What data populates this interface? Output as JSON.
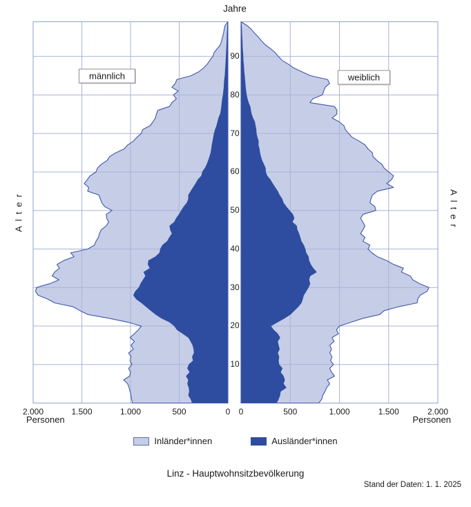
{
  "axis": {
    "age_unit_label": "Jahre",
    "age_axis_label": "Alter",
    "x_axis_label": "Personen",
    "x_ticks_left": [
      "2.000",
      "1.500",
      "1.000",
      "500",
      "0"
    ],
    "x_ticks_right": [
      "0",
      "500",
      "1.000",
      "1.500",
      "2.000"
    ],
    "age_ticks": [
      "10",
      "20",
      "30",
      "40",
      "50",
      "60",
      "70",
      "80",
      "90"
    ]
  },
  "panels": {
    "male_label": "männlich",
    "female_label": "weiblich"
  },
  "legend": [
    {
      "label": "Inländer*innen",
      "color": "#c6cde7"
    },
    {
      "label": "Ausländer*innen",
      "color": "#2e4da0"
    }
  ],
  "footer": {
    "title": "Linz - Hauptwohnsitzbevölkerung",
    "stand": "Stand der Daten: 1. 1. 2025"
  },
  "colors": {
    "light_fill": "#c6cde7",
    "dark_fill": "#2e4da0",
    "outline": "#3f58a8",
    "grid": "#a9b4d9",
    "panel_border": "#8ea1cd",
    "text": "#1a1a1a"
  },
  "chart_data": {
    "type": "area",
    "subtype": "population-pyramid",
    "title": "Linz - Hauptwohnsitzbevölkerung",
    "as_of": "1. 1. 2025",
    "xlabel": "Personen",
    "ylabel": "Alter (Jahre)",
    "x_range_per_side": [
      0,
      2000
    ],
    "x_tick_step": 500,
    "age_range": [
      0,
      99
    ],
    "age_tick_step": 10,
    "grid": true,
    "legend_position": "bottom",
    "stacking": "dark Ausländer*innen band from axis outward, light Inländer*innen band stacked outside it; outer edge = total",
    "ages": [
      0,
      1,
      2,
      3,
      4,
      5,
      6,
      7,
      8,
      9,
      10,
      11,
      12,
      13,
      14,
      15,
      16,
      17,
      18,
      19,
      20,
      21,
      22,
      23,
      24,
      25,
      26,
      27,
      28,
      29,
      30,
      31,
      32,
      33,
      34,
      35,
      36,
      37,
      38,
      39,
      40,
      41,
      42,
      43,
      44,
      45,
      46,
      47,
      48,
      49,
      50,
      51,
      52,
      53,
      54,
      55,
      56,
      57,
      58,
      59,
      60,
      61,
      62,
      63,
      64,
      65,
      66,
      67,
      68,
      69,
      70,
      71,
      72,
      73,
      74,
      75,
      76,
      77,
      78,
      79,
      80,
      81,
      82,
      83,
      84,
      85,
      86,
      87,
      88,
      89,
      90,
      91,
      92,
      93,
      94,
      95,
      96,
      97,
      98
    ],
    "series": [
      {
        "name": "männlich gesamt (Inländer*innen + Ausländer*innen)",
        "side": "male",
        "role": "total",
        "values": [
          980,
          990,
          995,
          1005,
          1015,
          1030,
          1070,
          1010,
          1000,
          1020,
          985,
          1005,
          995,
          1020,
          970,
          995,
          960,
          1005,
          960,
          920,
          890,
          1030,
          1220,
          1440,
          1520,
          1590,
          1780,
          1850,
          1950,
          1975,
          1965,
          1830,
          1735,
          1805,
          1780,
          1730,
          1755,
          1685,
          1580,
          1615,
          1440,
          1370,
          1355,
          1330,
          1320,
          1300,
          1250,
          1225,
          1245,
          1250,
          1190,
          1265,
          1295,
          1310,
          1325,
          1440,
          1430,
          1475,
          1445,
          1415,
          1355,
          1340,
          1300,
          1240,
          1215,
          1150,
          1065,
          1030,
          970,
          935,
          890,
          875,
          800,
          770,
          745,
          735,
          720,
          600,
          575,
          530,
          560,
          510,
          575,
          540,
          525,
          380,
          300,
          250,
          212,
          185,
          155,
          141,
          110,
          78,
          65,
          55,
          45,
          38,
          30
        ]
      },
      {
        "name": "männlich Ausländer*innen",
        "side": "male",
        "role": "foreign",
        "values": [
          365,
          380,
          404,
          395,
          400,
          414,
          404,
          428,
          390,
          414,
          400,
          356,
          365,
          346,
          350,
          360,
          380,
          404,
          462,
          520,
          549,
          597,
          680,
          740,
          790,
          838,
          886,
          940,
          969,
          950,
          912,
          895,
          870,
          845,
          863,
          800,
          820,
          814,
          742,
          700,
          693,
          670,
          622,
          600,
          573,
          590,
          597,
          549,
          530,
          500,
          477,
          452,
          420,
          404,
          404,
          380,
          356,
          330,
          308,
          270,
          262,
          235,
          215,
          200,
          187,
          175,
          168,
          163,
          155,
          148,
          141,
          130,
          115,
          105,
          95,
          78,
          70,
          65,
          60,
          57,
          48,
          45,
          40,
          38,
          35,
          30,
          28,
          25,
          22,
          20,
          18,
          16,
          14,
          12,
          10,
          9,
          8,
          6,
          5
        ]
      },
      {
        "name": "weiblich gesamt (Inländer*innen + Ausländer*innen)",
        "side": "female",
        "role": "total",
        "values": [
          790,
          820,
          830,
          853,
          870,
          901,
          877,
          950,
          920,
          901,
          940,
          910,
          925,
          901,
          920,
          901,
          945,
          925,
          990,
          970,
          1000,
          1120,
          1240,
          1410,
          1455,
          1600,
          1790,
          1795,
          1820,
          1890,
          1910,
          1815,
          1745,
          1720,
          1630,
          1650,
          1550,
          1480,
          1385,
          1330,
          1290,
          1310,
          1240,
          1260,
          1215,
          1240,
          1260,
          1238,
          1215,
          1240,
          1370,
          1360,
          1310,
          1320,
          1335,
          1385,
          1550,
          1480,
          1530,
          1550,
          1500,
          1455,
          1430,
          1380,
          1340,
          1335,
          1290,
          1262,
          1200,
          1130,
          1093,
          1060,
          1046,
          1000,
          925,
          973,
          975,
          950,
          700,
          730,
          827,
          840,
          855,
          900,
          880,
          707,
          620,
          537,
          480,
          417,
          380,
          346,
          300,
          248,
          210,
          177,
          140,
          106,
          64
        ]
      },
      {
        "name": "weiblich Ausländer*innen",
        "side": "female",
        "role": "foreign",
        "values": [
          360,
          380,
          395,
          400,
          458,
          430,
          443,
          430,
          400,
          419,
          385,
          380,
          385,
          371,
          390,
          380,
          371,
          395,
          371,
          330,
          300,
          370,
          440,
          500,
          540,
          580,
          612,
          625,
          636,
          660,
          684,
          700,
          690,
          700,
          766,
          732,
          707,
          690,
          684,
          660,
          651,
          636,
          612,
          600,
          588,
          570,
          564,
          520,
          540,
          525,
          491,
          458,
          430,
          417,
          390,
          371,
          346,
          320,
          297,
          264,
          250,
          248,
          230,
          212,
          200,
          191,
          185,
          175,
          177,
          165,
          155,
          153,
          145,
          139,
          120,
          106,
          98,
          92,
          75,
          64,
          55,
          50,
          45,
          42,
          38,
          35,
          30,
          28,
          25,
          22,
          20,
          18,
          15,
          13,
          12,
          10,
          8,
          6,
          5
        ]
      }
    ]
  }
}
